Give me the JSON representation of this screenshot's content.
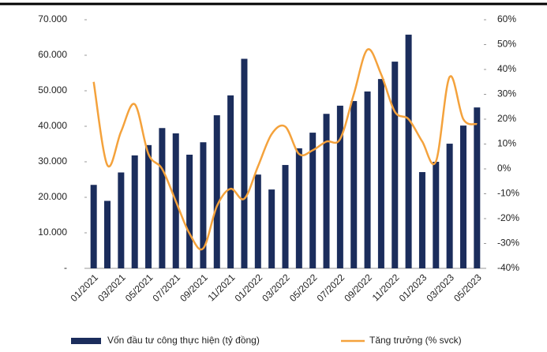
{
  "chart_data": {
    "type": "bar",
    "categories": [
      "01/2021",
      null,
      "03/2021",
      null,
      "05/2021",
      null,
      "07/2021",
      null,
      "09/2021",
      null,
      "11/2021",
      null,
      "01/2022",
      null,
      "03/2022",
      null,
      "05/2022",
      null,
      "07/2022",
      null,
      "09/2022",
      null,
      "11/2022",
      null,
      "01/2023",
      null,
      "03/2023",
      null,
      "05/2023"
    ],
    "series": [
      {
        "name": "Vốn đầu tư công thực hiện (tỷ đồng)",
        "type": "bar",
        "color": "#1b2d5c",
        "values": [
          23500,
          19000,
          27000,
          31800,
          34700,
          39500,
          38000,
          32000,
          35500,
          43100,
          48700,
          59000,
          26400,
          22200,
          29100,
          33800,
          38200,
          43500,
          45800,
          47100,
          49800,
          53300,
          58200,
          65800,
          27100,
          30000,
          35100,
          40200,
          45300
        ]
      },
      {
        "name": "Tăng trưởng (% svck)",
        "type": "line",
        "axis": "y2",
        "color": "#f4a23c",
        "values": [
          35,
          1.5,
          15,
          26,
          6,
          0,
          -13,
          -26,
          -32,
          -15,
          -8,
          -12,
          1,
          14,
          17,
          6,
          7.5,
          11,
          12,
          30,
          48,
          38,
          23,
          20,
          11,
          3,
          37,
          20,
          18
        ]
      }
    ],
    "ylim": [
      0,
      70000
    ],
    "yticks": [
      {
        "value": 0,
        "label": "-"
      },
      {
        "value": 10000,
        "label": "10.000"
      },
      {
        "value": 20000,
        "label": "20.000"
      },
      {
        "value": 30000,
        "label": "30.000"
      },
      {
        "value": 40000,
        "label": "40.000"
      },
      {
        "value": 50000,
        "label": "50.000"
      },
      {
        "value": 60000,
        "label": "60.000"
      },
      {
        "value": 70000,
        "label": "70.000"
      }
    ],
    "y2lim": [
      -40,
      60
    ],
    "y2ticks": [
      {
        "value": -40,
        "label": "-40%"
      },
      {
        "value": -30,
        "label": "-30%"
      },
      {
        "value": -20,
        "label": "-20%"
      },
      {
        "value": -10,
        "label": "-10%"
      },
      {
        "value": 0,
        "label": "0%"
      },
      {
        "value": 10,
        "label": "10%"
      },
      {
        "value": 20,
        "label": "20%"
      },
      {
        "value": 30,
        "label": "30%"
      },
      {
        "value": 40,
        "label": "40%"
      },
      {
        "value": 50,
        "label": "50%"
      },
      {
        "value": 60,
        "label": "60%"
      }
    ]
  }
}
